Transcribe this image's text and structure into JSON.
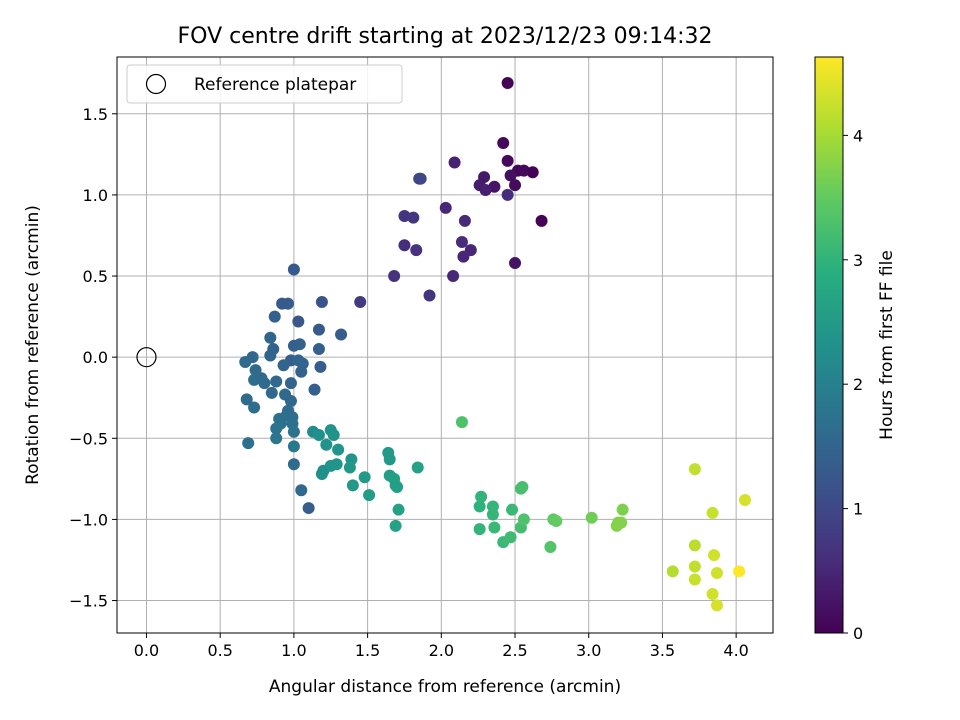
{
  "chart_data": {
    "type": "scatter",
    "title": "FOV centre drift starting at 2023/12/23 09:14:32",
    "xlabel": "Angular distance from reference (arcmin)",
    "ylabel": "Rotation from reference (arcmin)",
    "xlim": [
      -0.2,
      4.25
    ],
    "ylim": [
      -1.7,
      1.85
    ],
    "xticks": [
      0.0,
      0.5,
      1.0,
      1.5,
      2.0,
      2.5,
      3.0,
      3.5,
      4.0
    ],
    "xtick_labels": [
      "0.0",
      "0.5",
      "1.0",
      "1.5",
      "2.0",
      "2.5",
      "3.0",
      "3.5",
      "4.0"
    ],
    "yticks": [
      -1.5,
      -1.0,
      -0.5,
      0.0,
      0.5,
      1.0,
      1.5
    ],
    "ytick_labels": [
      "−1.5",
      "−1.0",
      "−0.5",
      "0.0",
      "0.5",
      "1.0",
      "1.5"
    ],
    "grid": true,
    "legend": {
      "placement": "upper-left",
      "entries": [
        {
          "label": "Reference platepar",
          "marker": "open-circle"
        }
      ]
    },
    "reference_point": {
      "x": 0.0,
      "y": 0.0
    },
    "colorbar": {
      "label": "Hours from first FF file",
      "colormap": "viridis",
      "range": [
        0,
        4.63
      ],
      "ticks": [
        0,
        1,
        2,
        3,
        4
      ],
      "tick_labels": [
        "0",
        "1",
        "2",
        "3",
        "4"
      ]
    },
    "points": [
      [
        2.45,
        1.69,
        0.05
      ],
      [
        2.42,
        1.32,
        0.1
      ],
      [
        2.45,
        1.21,
        0.12
      ],
      [
        2.52,
        1.15,
        0.08
      ],
      [
        2.56,
        1.15,
        0.1
      ],
      [
        2.62,
        1.14,
        0.03
      ],
      [
        2.47,
        1.12,
        0.2
      ],
      [
        2.29,
        1.11,
        0.3
      ],
      [
        2.36,
        1.05,
        0.25
      ],
      [
        2.26,
        1.06,
        0.35
      ],
      [
        2.3,
        1.03,
        0.4
      ],
      [
        2.5,
        1.06,
        0.15
      ],
      [
        2.45,
        1.0,
        0.6
      ],
      [
        2.68,
        0.84,
        0.02
      ],
      [
        2.09,
        1.2,
        0.45
      ],
      [
        2.03,
        0.92,
        0.5
      ],
      [
        2.16,
        0.84,
        0.55
      ],
      [
        1.85,
        1.1,
        0.95
      ],
      [
        1.86,
        1.1,
        1.0
      ],
      [
        1.75,
        0.87,
        0.7
      ],
      [
        1.81,
        0.86,
        0.75
      ],
      [
        2.14,
        0.71,
        0.6
      ],
      [
        2.2,
        0.66,
        0.5
      ],
      [
        2.15,
        0.62,
        0.5
      ],
      [
        2.5,
        0.58,
        0.25
      ],
      [
        1.75,
        0.69,
        0.6
      ],
      [
        1.83,
        0.66,
        0.65
      ],
      [
        1.68,
        0.5,
        0.65
      ],
      [
        2.08,
        0.5,
        0.5
      ],
      [
        1.92,
        0.38,
        0.7
      ],
      [
        1.45,
        0.34,
        0.8
      ],
      [
        1.0,
        0.54,
        1.3
      ],
      [
        1.19,
        0.34,
        1.2
      ],
      [
        0.96,
        0.33,
        1.35
      ],
      [
        0.92,
        0.33,
        1.3
      ],
      [
        1.03,
        0.22,
        1.25
      ],
      [
        0.87,
        0.25,
        1.4
      ],
      [
        1.17,
        0.17,
        1.3
      ],
      [
        1.32,
        0.14,
        1.35
      ],
      [
        0.84,
        0.12,
        1.5
      ],
      [
        1.0,
        0.07,
        1.4
      ],
      [
        1.04,
        0.08,
        1.45
      ],
      [
        1.17,
        0.05,
        1.4
      ],
      [
        0.86,
        0.05,
        1.45
      ],
      [
        0.84,
        0.01,
        1.5
      ],
      [
        0.72,
        0.0,
        1.55
      ],
      [
        0.67,
        -0.03,
        1.6
      ],
      [
        0.98,
        -0.02,
        1.4
      ],
      [
        1.03,
        -0.02,
        1.5
      ],
      [
        1.06,
        -0.04,
        1.5
      ],
      [
        0.93,
        -0.05,
        1.5
      ],
      [
        1.18,
        -0.06,
        1.35
      ],
      [
        0.74,
        -0.08,
        1.6
      ],
      [
        1.05,
        -0.09,
        1.45
      ],
      [
        0.73,
        -0.14,
        1.65
      ],
      [
        0.78,
        -0.13,
        1.6
      ],
      [
        0.8,
        -0.16,
        1.6
      ],
      [
        0.88,
        -0.15,
        1.55
      ],
      [
        0.98,
        -0.16,
        1.5
      ],
      [
        1.14,
        -0.2,
        1.4
      ],
      [
        0.85,
        -0.22,
        1.55
      ],
      [
        0.94,
        -0.23,
        1.55
      ],
      [
        0.68,
        -0.26,
        1.6
      ],
      [
        0.98,
        -0.27,
        1.55
      ],
      [
        0.73,
        -0.31,
        1.65
      ],
      [
        0.96,
        -0.33,
        1.6
      ],
      [
        0.95,
        -0.36,
        1.65
      ],
      [
        0.99,
        -0.37,
        1.65
      ],
      [
        0.9,
        -0.38,
        1.7
      ],
      [
        0.91,
        -0.41,
        1.7
      ],
      [
        0.99,
        -0.41,
        1.7
      ],
      [
        0.88,
        -0.44,
        1.75
      ],
      [
        1.0,
        -0.46,
        1.75
      ],
      [
        0.88,
        -0.5,
        1.8
      ],
      [
        0.69,
        -0.53,
        1.7
      ],
      [
        1.0,
        -0.55,
        1.85
      ],
      [
        1.0,
        -0.66,
        1.6
      ],
      [
        1.05,
        -0.82,
        1.55
      ],
      [
        1.1,
        -0.93,
        1.35
      ],
      [
        1.13,
        -0.46,
        2.2
      ],
      [
        1.17,
        -0.48,
        2.3
      ],
      [
        1.25,
        -0.45,
        2.35
      ],
      [
        1.27,
        -0.48,
        2.35
      ],
      [
        1.22,
        -0.54,
        2.35
      ],
      [
        1.3,
        -0.57,
        2.4
      ],
      [
        1.2,
        -0.7,
        2.3
      ],
      [
        1.19,
        -0.72,
        2.3
      ],
      [
        1.25,
        -0.67,
        2.35
      ],
      [
        1.29,
        -0.66,
        2.4
      ],
      [
        1.39,
        -0.63,
        2.4
      ],
      [
        1.38,
        -0.68,
        2.45
      ],
      [
        1.4,
        -0.79,
        2.45
      ],
      [
        1.48,
        -0.74,
        2.5
      ],
      [
        1.51,
        -0.85,
        2.55
      ],
      [
        1.64,
        -0.59,
        2.5
      ],
      [
        1.65,
        -0.63,
        2.5
      ],
      [
        1.65,
        -0.73,
        2.55
      ],
      [
        1.68,
        -0.75,
        2.6
      ],
      [
        1.69,
        -0.79,
        2.6
      ],
      [
        1.7,
        -0.8,
        2.6
      ],
      [
        1.71,
        -0.94,
        2.65
      ],
      [
        1.69,
        -1.04,
        2.65
      ],
      [
        1.84,
        -0.68,
        2.65
      ],
      [
        2.14,
        -0.4,
        3.3
      ],
      [
        2.26,
        -0.92,
        2.95
      ],
      [
        2.27,
        -0.86,
        3.0
      ],
      [
        2.35,
        -0.97,
        3.05
      ],
      [
        2.35,
        -0.92,
        3.05
      ],
      [
        2.26,
        -1.06,
        3.0
      ],
      [
        2.36,
        -1.05,
        3.1
      ],
      [
        2.42,
        -1.14,
        3.1
      ],
      [
        2.47,
        -1.11,
        3.15
      ],
      [
        2.48,
        -0.94,
        3.1
      ],
      [
        2.54,
        -1.05,
        3.2
      ],
      [
        2.55,
        -0.8,
        3.25
      ],
      [
        2.54,
        -0.81,
        3.25
      ],
      [
        2.56,
        -1.0,
        3.3
      ],
      [
        2.74,
        -1.17,
        3.35
      ],
      [
        2.76,
        -1.0,
        3.45
      ],
      [
        2.78,
        -1.01,
        3.5
      ],
      [
        3.02,
        -0.99,
        3.6
      ],
      [
        3.2,
        -1.02,
        3.7
      ],
      [
        3.19,
        -1.04,
        3.75
      ],
      [
        3.22,
        -1.02,
        3.75
      ],
      [
        3.23,
        -0.94,
        3.7
      ],
      [
        3.57,
        -1.32,
        4.1
      ],
      [
        3.72,
        -0.69,
        4.2
      ],
      [
        3.72,
        -1.16,
        4.15
      ],
      [
        3.72,
        -1.29,
        4.2
      ],
      [
        3.72,
        -1.37,
        4.25
      ],
      [
        3.84,
        -0.96,
        4.25
      ],
      [
        3.85,
        -1.22,
        4.3
      ],
      [
        3.87,
        -1.33,
        4.3
      ],
      [
        3.84,
        -1.46,
        4.3
      ],
      [
        3.87,
        -1.53,
        4.35
      ],
      [
        4.06,
        -0.88,
        4.35
      ],
      [
        4.02,
        -1.32,
        4.63
      ]
    ]
  }
}
